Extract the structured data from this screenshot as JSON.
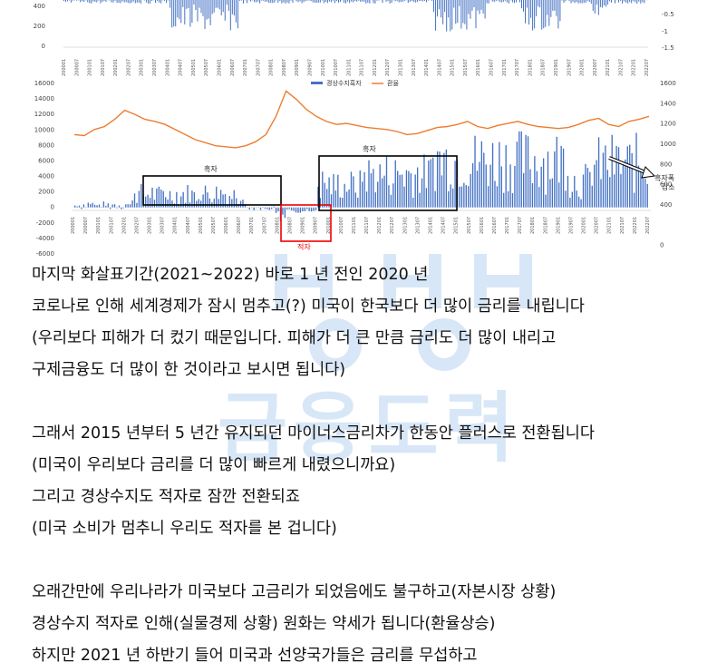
{
  "chart_data": [
    {
      "type": "bar",
      "note": "top chart partially cropped",
      "yticks_left": [
        "400",
        "200",
        "0"
      ],
      "yticks_right": [
        "-0.5",
        "-1",
        "-1.5"
      ]
    },
    {
      "type": "bar+line",
      "legend": [
        "경상수지흑자",
        "환율"
      ],
      "yticks_left": [
        "16000",
        "14000",
        "12000",
        "10000",
        "8000",
        "6000",
        "4000",
        "2000",
        "0",
        "-2000",
        "-4000",
        "-6000"
      ],
      "yticks_right": [
        "1600",
        "1400",
        "1200",
        "1000",
        "800",
        "600",
        "400",
        "0"
      ],
      "ylim_left": [
        -6000,
        16000
      ],
      "ylim_right": [
        0,
        1600
      ],
      "annotations": {
        "surplus1": "흑자",
        "surplus2": "흑자",
        "deficit": "적자",
        "decrease": "흑자폭\n감소"
      },
      "series": [
        {
          "name": "경상수지흑자",
          "color": "#4472c4"
        },
        {
          "name": "환율",
          "color": "#ed7d31",
          "values": [
            1050,
            1040,
            1100,
            1130,
            1200,
            1290,
            1250,
            1200,
            1180,
            1150,
            1100,
            1050,
            1000,
            970,
            940,
            930,
            920,
            940,
            980,
            1050,
            1230,
            1480,
            1400,
            1300,
            1230,
            1180,
            1150,
            1160,
            1140,
            1120,
            1110,
            1100,
            1080,
            1050,
            1060,
            1090,
            1120,
            1130,
            1150,
            1180,
            1130,
            1110,
            1140,
            1160,
            1180,
            1150,
            1130,
            1120,
            1110,
            1120,
            1150,
            1190,
            1210,
            1150,
            1130,
            1180,
            1200,
            1230
          ]
        }
      ]
    }
  ],
  "article": {
    "lines": [
      "마지막 화살표기간(2021~2022) 바로 1 년 전인 2020 년",
      "코로나로 인해 세계경제가 잠시 멈추고(?) 미국이 한국보다 더 많이 금리를 내립니다",
      "(우리보다 피해가 더 컸기 때문입니다. 피해가 더 큰 만큼 금리도 더 많이 내리고",
      "구제금융도 더 많이 한 것이라고 보시면 됩니다)",
      "",
      "그래서 2015 년부터 5 년간 유지되던 마이너스금리차가 한동안 플러스로 전환됩니다",
      "(미국이 우리보다 금리를 더 많이 빠르게 내렸으니까요)",
      "그리고 경상수지도 적자로 잠깐 전환되죠",
      "(미국 소비가 멈추니 우리도 적자를 본 겁니다)",
      "",
      "오래간만에 우리나라가 미국보다 고금리가 되었음에도 불구하고(자본시장 상황)",
      "경상수지 적자로 인해(실물경제 상황) 원화는 약세가 됩니다(환율상승)",
      "하지만 2021 년 하반기 들어 미국과 선양국가들은 금리를 무섭하고"
    ]
  },
  "watermark": {
    "text": "금융도력",
    "color": "#b9d4f2"
  }
}
